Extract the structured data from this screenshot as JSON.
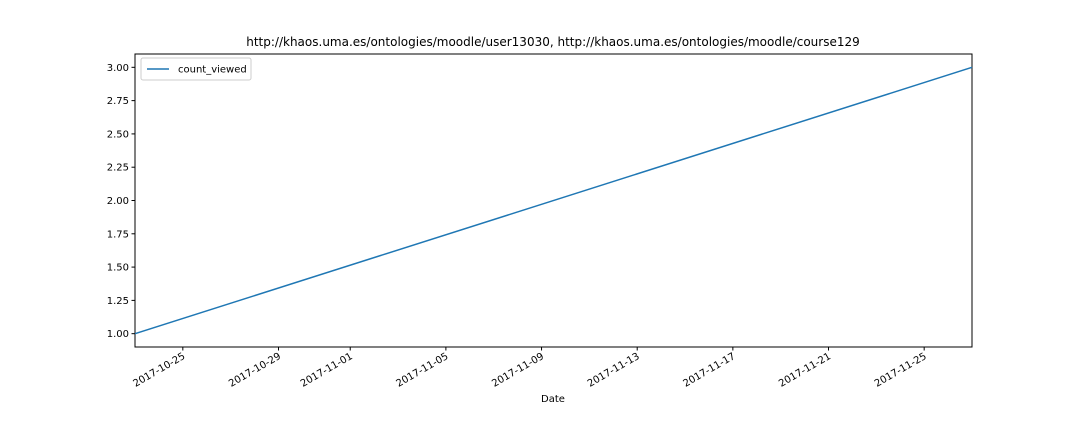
{
  "chart_data": {
    "type": "line",
    "title": "http://khaos.uma.es/ontologies/moodle/user13030, http://khaos.uma.es/ontologies/moodle/course129",
    "xlabel": "Date",
    "ylabel": "",
    "x_axis_type": "date",
    "xlim": [
      "2017-10-23",
      "2017-11-27"
    ],
    "ylim": [
      0.9,
      3.1
    ],
    "x_ticks": [
      "2017-10-25",
      "2017-10-29",
      "2017-11-01",
      "2017-11-05",
      "2017-11-09",
      "2017-11-13",
      "2017-11-17",
      "2017-11-21",
      "2017-11-25"
    ],
    "y_ticks": [
      "1.00",
      "1.25",
      "1.50",
      "1.75",
      "2.00",
      "2.25",
      "2.50",
      "2.75",
      "3.00"
    ],
    "grid": false,
    "legend_position": "top-left",
    "series": [
      {
        "name": "count_viewed",
        "color": "#1f77b4",
        "x": [
          "2017-10-23",
          "2017-11-27"
        ],
        "y": [
          1,
          3
        ]
      }
    ]
  }
}
